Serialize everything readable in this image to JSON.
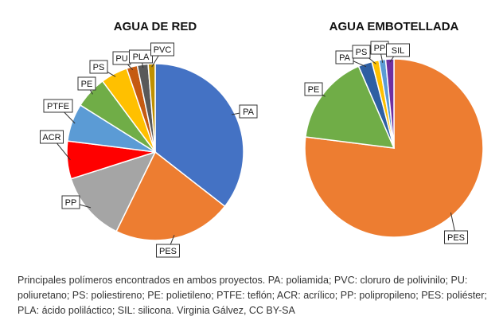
{
  "chart_data": [
    {
      "type": "pie",
      "title": "AGUA DE RED",
      "categories": [
        "PA",
        "PES",
        "PP",
        "ACR",
        "PTFE",
        "PE",
        "PS",
        "PU",
        "PLA",
        "PVC"
      ],
      "values": [
        36,
        22,
        13,
        7,
        7,
        6,
        5,
        2,
        2,
        1.3
      ],
      "colors": [
        "#4472c4",
        "#ed7d31",
        "#a5a5a5",
        "#ff0000",
        "#5b9bd5",
        "#70ad47",
        "#ffc000",
        "#c55a11",
        "#595959",
        "#bf9000"
      ]
    },
    {
      "type": "pie",
      "title": "AGUA EMBOTELLADA",
      "categories": [
        "PES",
        "PE",
        "PA",
        "PS",
        "PP",
        "SIL"
      ],
      "values": [
        77,
        16.5,
        2.5,
        1.3,
        1.2,
        1.5
      ],
      "colors": [
        "#ed7d31",
        "#70ad47",
        "#2e5fa3",
        "#ffc000",
        "#5b9bd5",
        "#7030a0"
      ]
    }
  ],
  "caption": "Principales polímeros encontrados en ambos proyectos. PA: poliamida; PVC: cloruro de polivinilo; PU: poliuretano; PS: poliestireno; PE: polietileno; PTFE: teflón; ACR: acrílico; PP: polipropileno; PES: poliéster; PLA: ácido poliláctico; SIL: silicona. Virginia Gálvez, CC BY-SA"
}
